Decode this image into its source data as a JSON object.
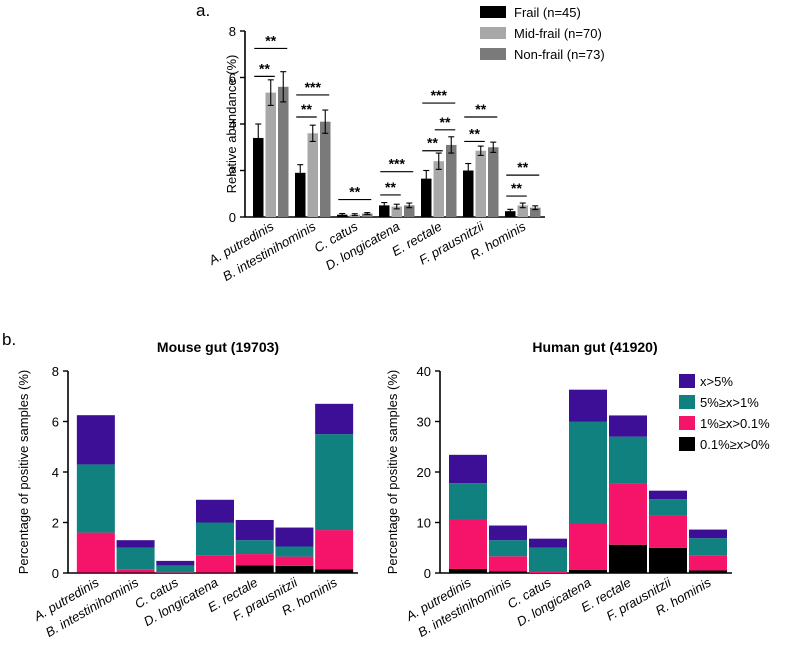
{
  "figure": {
    "label_a": "a.",
    "label_b": "b."
  },
  "legend_stacked": [
    {
      "name": "x>5%",
      "color": "#3c0f96"
    },
    {
      "name": "5%≥x>1%",
      "color": "#118180"
    },
    {
      "name": "1%≥x>0.1%",
      "color": "#f5146a"
    },
    {
      "name": "0.1%≥x>0%",
      "color": "#000000"
    }
  ],
  "chart_data": [
    {
      "id": "panel-a",
      "type": "bar",
      "title": "",
      "xlabel": "",
      "ylabel": "Relative abundance (%)",
      "ylim": [
        0,
        8
      ],
      "yticks": [
        "0",
        "2",
        "4",
        "6",
        "8"
      ],
      "categories": [
        "A. putredinis",
        "B. intestinihominis",
        "C. catus",
        "D. longicatena",
        "E. rectale",
        "F. prausnitzii",
        "R. hominis"
      ],
      "series": [
        {
          "name": "Frail (n=45)",
          "color": "#000000",
          "values": [
            3.4,
            1.9,
            0.1,
            0.5,
            1.65,
            2.0,
            0.25
          ],
          "errors": [
            0.6,
            0.35,
            0.05,
            0.12,
            0.35,
            0.3,
            0.08
          ]
        },
        {
          "name": "Mid-frail (n=70)",
          "color": "#a8a8a8",
          "values": [
            5.35,
            3.6,
            0.1,
            0.45,
            2.4,
            2.85,
            0.5
          ],
          "errors": [
            0.55,
            0.35,
            0.04,
            0.1,
            0.35,
            0.2,
            0.1
          ]
        },
        {
          "name": "Non-frail (n=73)",
          "color": "#7a7a7a",
          "values": [
            5.6,
            4.1,
            0.15,
            0.5,
            3.1,
            3.0,
            0.4
          ],
          "errors": [
            0.65,
            0.5,
            0.04,
            0.1,
            0.35,
            0.22,
            0.08
          ]
        }
      ],
      "significance": [
        {
          "category": 0,
          "from": 0,
          "to": 1,
          "label": "**",
          "y": 6.05
        },
        {
          "category": 0,
          "from": 0,
          "to": 2,
          "label": "**",
          "y": 7.25
        },
        {
          "category": 1,
          "from": 0,
          "to": 1,
          "label": "**",
          "y": 4.3
        },
        {
          "category": 1,
          "from": 0,
          "to": 2,
          "label": "***",
          "y": 5.25
        },
        {
          "category": 2,
          "from": 0,
          "to": 2,
          "label": "**",
          "y": 0.75
        },
        {
          "category": 3,
          "from": 0,
          "to": 1,
          "label": "**",
          "y": 0.95
        },
        {
          "category": 3,
          "from": 0,
          "to": 2,
          "label": "***",
          "y": 1.95
        },
        {
          "category": 4,
          "from": 0,
          "to": 1,
          "label": "**",
          "y": 2.85
        },
        {
          "category": 4,
          "from": 1,
          "to": 2,
          "label": "**",
          "y": 3.75
        },
        {
          "category": 4,
          "from": 0,
          "to": 2,
          "label": "***",
          "y": 4.9
        },
        {
          "category": 5,
          "from": 0,
          "to": 1,
          "label": "**",
          "y": 3.25
        },
        {
          "category": 5,
          "from": 0,
          "to": 2,
          "label": "**",
          "y": 4.3
        },
        {
          "category": 6,
          "from": 0,
          "to": 1,
          "label": "**",
          "y": 0.9
        },
        {
          "category": 6,
          "from": 0,
          "to": 2,
          "label": "**",
          "y": 1.8
        }
      ]
    },
    {
      "id": "panel-b-mouse",
      "type": "bar",
      "stacked": true,
      "title": "Mouse gut (19703)",
      "xlabel": "",
      "ylabel": "Percentage of positive samples (%)",
      "ylim": [
        0,
        8
      ],
      "yticks": [
        "0",
        "2",
        "4",
        "6",
        "8"
      ],
      "categories": [
        "A. putredinis",
        "B. intestinihominis",
        "C. catus",
        "D. longicatena",
        "E. rectale",
        "F. prausnitzii",
        "R. hominis"
      ],
      "series": [
        {
          "name": "0.1%≥x>0%",
          "values": [
            0.02,
            0.02,
            0.0,
            0.02,
            0.3,
            0.28,
            0.15
          ]
        },
        {
          "name": "1%≥x>0.1%",
          "values": [
            1.58,
            0.13,
            0.02,
            0.66,
            0.45,
            0.37,
            1.55
          ]
        },
        {
          "name": "5%≥x>1%",
          "values": [
            2.7,
            0.85,
            0.28,
            1.32,
            0.55,
            0.4,
            3.8
          ]
        },
        {
          "name": "x>5%",
          "values": [
            1.95,
            0.3,
            0.18,
            0.9,
            0.8,
            0.75,
            1.2
          ]
        }
      ]
    },
    {
      "id": "panel-b-human",
      "type": "bar",
      "stacked": true,
      "title": "Human gut  (41920)",
      "xlabel": "",
      "ylabel": "Percentage of positive samples (%)",
      "ylim": [
        0,
        40
      ],
      "yticks": [
        "0",
        "10",
        "20",
        "30",
        "40"
      ],
      "categories": [
        "A. putredinis",
        "B. intestinihominis",
        "C. catus",
        "D. longicatena",
        "E. rectale",
        "F. prausnitzii",
        "R. hominis"
      ],
      "series": [
        {
          "name": "0.1%≥x>0%",
          "values": [
            0.8,
            0.3,
            0.0,
            0.6,
            5.6,
            5.0,
            0.5
          ]
        },
        {
          "name": "1%≥x>0.1%",
          "values": [
            9.7,
            3.0,
            0.3,
            9.1,
            12.2,
            6.4,
            2.9
          ]
        },
        {
          "name": "5%≥x>1%",
          "values": [
            7.3,
            3.2,
            4.7,
            20.3,
            9.2,
            3.2,
            3.5
          ]
        },
        {
          "name": "x>5%",
          "values": [
            5.6,
            2.9,
            1.8,
            6.3,
            4.2,
            1.7,
            1.7
          ]
        }
      ]
    }
  ]
}
